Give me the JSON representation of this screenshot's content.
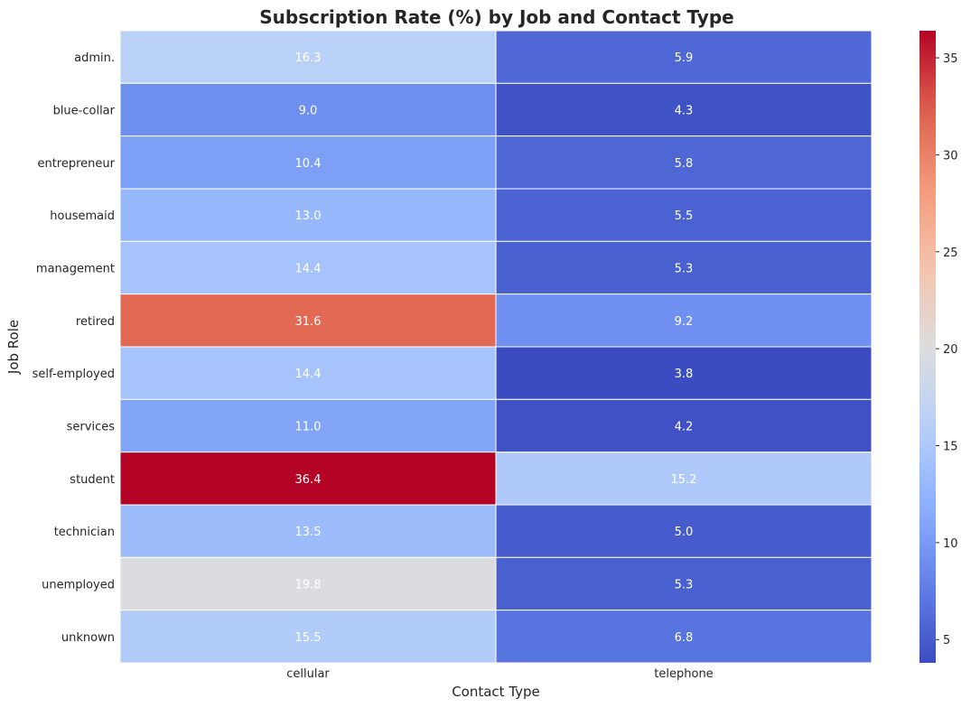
{
  "chart_data": {
    "type": "heatmap",
    "title": "Subscription Rate (%) by Job and Contact Type",
    "xlabel": "Contact Type",
    "ylabel": "Job Role",
    "columns": [
      "cellular",
      "telephone"
    ],
    "rows": [
      "admin.",
      "blue-collar",
      "entrepreneur",
      "housemaid",
      "management",
      "retired",
      "self-employed",
      "services",
      "student",
      "technician",
      "unemployed",
      "unknown"
    ],
    "values": [
      [
        16.3,
        5.9
      ],
      [
        9.0,
        4.3
      ],
      [
        10.4,
        5.8
      ],
      [
        13.0,
        5.5
      ],
      [
        14.4,
        5.3
      ],
      [
        31.6,
        9.2
      ],
      [
        14.4,
        3.8
      ],
      [
        11.0,
        4.2
      ],
      [
        36.4,
        15.2
      ],
      [
        13.5,
        5.0
      ],
      [
        19.8,
        5.3
      ],
      [
        15.5,
        6.8
      ]
    ],
    "value_labels": [
      [
        "16.3",
        "5.9"
      ],
      [
        "9.0",
        "4.3"
      ],
      [
        "10.4",
        "5.8"
      ],
      [
        "13.0",
        "5.5"
      ],
      [
        "14.4",
        "5.3"
      ],
      [
        "31.6",
        "9.2"
      ],
      [
        "14.4",
        "3.8"
      ],
      [
        "11.0",
        "4.2"
      ],
      [
        "36.4",
        "15.2"
      ],
      [
        "13.5",
        "5.0"
      ],
      [
        "19.8",
        "5.3"
      ],
      [
        "15.5",
        "6.8"
      ]
    ],
    "colormap": "coolwarm",
    "color_range": [
      3.8,
      36.4
    ],
    "colorbar_ticks": [
      5,
      10,
      15,
      20,
      25,
      30,
      35
    ],
    "grid": false
  }
}
